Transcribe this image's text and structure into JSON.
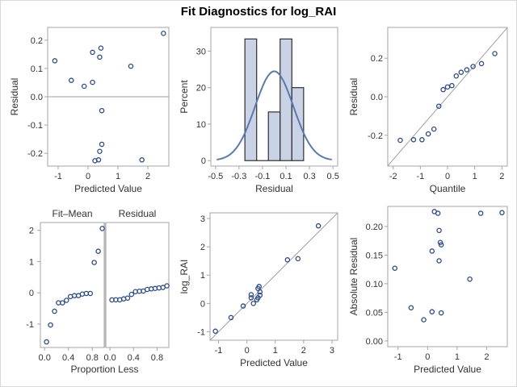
{
  "title": "Fit Diagnostics for log_RAI",
  "colors": {
    "marker": "#2c4a8a",
    "bar_fill": "#c9d3e5",
    "curve": "#5a7ab0",
    "refline": "#a0a0a0"
  },
  "chart_data": [
    {
      "id": "residual-vs-predicted",
      "type": "scatter",
      "xlabel": "Predicted Value",
      "ylabel": "Residual",
      "xlim": [
        -1.35,
        2.7
      ],
      "ylim": [
        -0.245,
        0.245
      ],
      "xticks": [
        -1,
        0,
        1,
        2
      ],
      "yticks": [
        -0.2,
        -0.1,
        0.0,
        0.1,
        0.2
      ],
      "ytick_labels": [
        "-0.2",
        "-0.1",
        "0.0",
        "0.1",
        "0.2"
      ],
      "reference_line": {
        "type": "horizontal",
        "y": 0
      },
      "points": [
        [
          -1.11,
          0.127
        ],
        [
          -0.56,
          0.058
        ],
        [
          -0.13,
          0.037
        ],
        [
          0.15,
          0.051
        ],
        [
          0.15,
          0.157
        ],
        [
          0.43,
          0.172
        ],
        [
          0.39,
          0.14
        ],
        [
          1.43,
          0.108
        ],
        [
          2.52,
          0.224
        ],
        [
          0.46,
          -0.049
        ],
        [
          0.46,
          -0.168
        ],
        [
          0.39,
          -0.193
        ],
        [
          0.35,
          -0.223
        ],
        [
          0.23,
          -0.226
        ],
        [
          1.8,
          -0.223
        ]
      ]
    },
    {
      "id": "residual-histogram",
      "type": "bar",
      "xlabel": "Residual",
      "ylabel": "Percent",
      "xlim": [
        -0.54,
        0.54
      ],
      "ylim": [
        -1.5,
        36.5
      ],
      "xticks": [
        -0.5,
        -0.3,
        -0.1,
        0.1,
        0.3,
        0.5
      ],
      "xtick_labels": [
        "-0.5",
        "-0.3",
        "-0.1",
        "0.1",
        "0.3",
        "0.5"
      ],
      "yticks": [
        0,
        10,
        20,
        30
      ],
      "bins": [
        {
          "from": -0.25,
          "to": -0.15,
          "value": 33.33
        },
        {
          "from": -0.15,
          "to": -0.05,
          "value": 0
        },
        {
          "from": -0.05,
          "to": 0.05,
          "value": 13.33
        },
        {
          "from": 0.05,
          "to": 0.15,
          "value": 33.33
        },
        {
          "from": 0.15,
          "to": 0.25,
          "value": 20.0
        }
      ],
      "normal_curve": {
        "mean": 0.0,
        "sd": 0.163,
        "bin_width": 0.1,
        "range": [
          -0.49,
          0.49
        ]
      }
    },
    {
      "id": "residual-qq",
      "type": "scatter",
      "xlabel": "Quantile",
      "ylabel": "Residual",
      "xlim": [
        -2.2,
        2.2
      ],
      "ylim": [
        -0.36,
        0.36
      ],
      "xticks": [
        -2,
        -1,
        0,
        1,
        2
      ],
      "yticks": [
        -0.2,
        0.0,
        0.2
      ],
      "ytick_labels": [
        "-0.2",
        "0.0",
        "0.2"
      ],
      "reference_line": {
        "type": "diagonal",
        "slope": 0.163,
        "intercept": 0
      },
      "points": [
        [
          -1.74,
          -0.226
        ],
        [
          -1.25,
          -0.223
        ],
        [
          -0.94,
          -0.223
        ],
        [
          -0.71,
          -0.193
        ],
        [
          -0.5,
          -0.168
        ],
        [
          -0.32,
          -0.049
        ],
        [
          -0.16,
          0.037
        ],
        [
          0.0,
          0.051
        ],
        [
          0.16,
          0.058
        ],
        [
          0.32,
          0.108
        ],
        [
          0.5,
          0.127
        ],
        [
          0.71,
          0.14
        ],
        [
          0.94,
          0.157
        ],
        [
          1.25,
          0.172
        ],
        [
          1.74,
          0.224
        ]
      ]
    },
    {
      "id": "residual-fit-spread",
      "type": "scatter",
      "xlabel": "Proportion Less",
      "panels": [
        "Fit–Mean",
        "Residual"
      ],
      "xlim": [
        -0.07,
        1.0
      ],
      "ylim": [
        -1.75,
        2.25
      ],
      "xticks": [
        0.0,
        0.4,
        0.8
      ],
      "xtick_labels": [
        "0.0",
        "0.4",
        "0.8"
      ],
      "yticks": [
        -1,
        0,
        1,
        2
      ],
      "fit_mean": [
        [
          0.033,
          -1.57
        ],
        [
          0.1,
          -1.03
        ],
        [
          0.167,
          -0.59
        ],
        [
          0.233,
          -0.32
        ],
        [
          0.3,
          -0.32
        ],
        [
          0.367,
          -0.24
        ],
        [
          0.433,
          -0.12
        ],
        [
          0.5,
          -0.09
        ],
        [
          0.567,
          -0.09
        ],
        [
          0.633,
          -0.04
        ],
        [
          0.7,
          -0.02
        ],
        [
          0.767,
          -0.02
        ],
        [
          0.833,
          0.97
        ],
        [
          0.9,
          1.33
        ],
        [
          0.967,
          2.06
        ]
      ],
      "residual": [
        [
          0.033,
          -0.226
        ],
        [
          0.1,
          -0.223
        ],
        [
          0.167,
          -0.223
        ],
        [
          0.233,
          -0.193
        ],
        [
          0.3,
          -0.168
        ],
        [
          0.367,
          -0.049
        ],
        [
          0.433,
          0.037
        ],
        [
          0.5,
          0.051
        ],
        [
          0.567,
          0.058
        ],
        [
          0.633,
          0.108
        ],
        [
          0.7,
          0.127
        ],
        [
          0.767,
          0.14
        ],
        [
          0.833,
          0.157
        ],
        [
          0.9,
          0.172
        ],
        [
          0.967,
          0.224
        ]
      ]
    },
    {
      "id": "observed-vs-predicted",
      "type": "scatter",
      "xlabel": "Predicted Value",
      "ylabel": "log_RAI",
      "xlim": [
        -1.3,
        3.2
      ],
      "ylim": [
        -1.3,
        3.2
      ],
      "xticks": [
        -1,
        0,
        1,
        2,
        3
      ],
      "yticks": [
        -1,
        0,
        1,
        2,
        3
      ],
      "reference_line": {
        "type": "diagonal",
        "slope": 1,
        "intercept": 0
      },
      "points": [
        [
          -1.11,
          -0.98
        ],
        [
          -0.56,
          -0.5
        ],
        [
          -0.13,
          -0.09
        ],
        [
          0.15,
          0.2
        ],
        [
          0.15,
          0.31
        ],
        [
          0.43,
          0.6
        ],
        [
          0.39,
          0.53
        ],
        [
          1.43,
          1.54
        ],
        [
          2.52,
          2.74
        ],
        [
          0.46,
          0.41
        ],
        [
          0.46,
          0.29
        ],
        [
          0.39,
          0.2
        ],
        [
          0.35,
          0.13
        ],
        [
          0.23,
          0.0
        ],
        [
          1.8,
          1.58
        ]
      ]
    },
    {
      "id": "absolute-residual-vs-predicted",
      "type": "scatter",
      "xlabel": "Predicted Value",
      "ylabel": "Absolute Residual",
      "xlim": [
        -1.35,
        2.7
      ],
      "ylim": [
        -0.01,
        0.235
      ],
      "xticks": [
        -1,
        0,
        1,
        2
      ],
      "yticks": [
        0.0,
        0.05,
        0.1,
        0.15,
        0.2
      ],
      "ytick_labels": [
        "0.00",
        "0.05",
        "0.10",
        "0.15",
        "0.20"
      ],
      "points": [
        [
          -1.11,
          0.127
        ],
        [
          -0.56,
          0.058
        ],
        [
          -0.13,
          0.037
        ],
        [
          0.15,
          0.051
        ],
        [
          0.15,
          0.157
        ],
        [
          0.43,
          0.172
        ],
        [
          0.39,
          0.14
        ],
        [
          1.43,
          0.108
        ],
        [
          2.52,
          0.224
        ],
        [
          0.46,
          0.049
        ],
        [
          0.46,
          0.168
        ],
        [
          0.39,
          0.193
        ],
        [
          0.35,
          0.223
        ],
        [
          0.23,
          0.226
        ],
        [
          1.8,
          0.223
        ]
      ]
    }
  ]
}
